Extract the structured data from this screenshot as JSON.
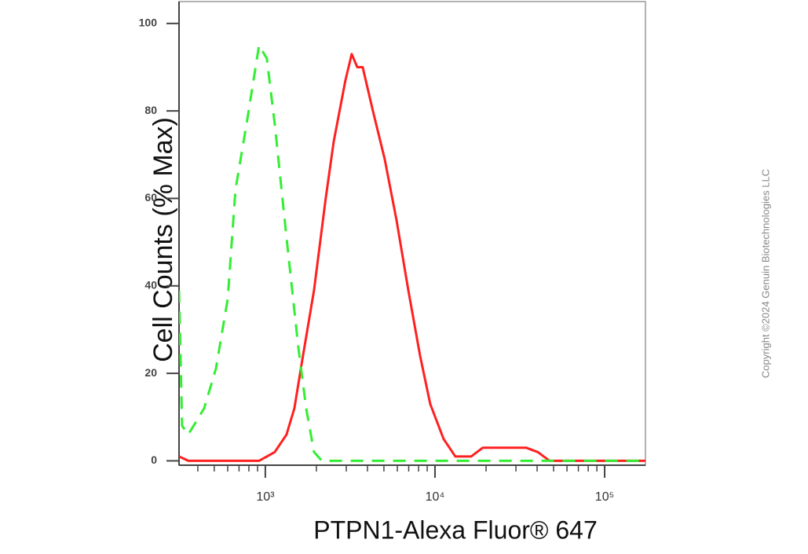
{
  "chart_data": {
    "type": "line",
    "log_x": true,
    "x_label": "PTPN1-Alexa Fluor® 647",
    "y_label": "Cell Counts (% Max)",
    "copyright": "Copyright ©2024 Genuin Biotechnologies LLC",
    "xlim": [
      310,
      174000
    ],
    "ylim": [
      -1,
      105
    ],
    "xticks": [
      {
        "value": 1000,
        "label": "10³"
      },
      {
        "value": 10000,
        "label": "10⁴"
      },
      {
        "value": 100000,
        "label": "10⁵"
      }
    ],
    "xminor_ticks": [
      400,
      500,
      600,
      700,
      800,
      900,
      2000,
      3000,
      4000,
      5000,
      6000,
      7000,
      8000,
      9000,
      20000,
      30000,
      40000,
      50000,
      60000,
      70000,
      80000,
      90000
    ],
    "yticks": [
      0,
      20,
      40,
      60,
      80,
      100
    ],
    "series": [
      {
        "color": "#ff2020",
        "dash": false,
        "x": [
          310,
          351,
          667,
          918,
          1136,
          1334,
          1483,
          1651,
          1937,
          2270,
          2529,
          2965,
          3228,
          3482,
          3750,
          4305,
          5054,
          5933,
          6966,
          8166,
          9376,
          11240,
          13190,
          16330,
          19150,
          22490,
          27810,
          34420,
          40360,
          47420,
          58700,
          174000
        ],
        "values": [
          1,
          0,
          0,
          0,
          2,
          6,
          12,
          23,
          39,
          60,
          73,
          87,
          93,
          90,
          90,
          80,
          69,
          55,
          39,
          24,
          13,
          5,
          1,
          1,
          3,
          3,
          3,
          3,
          2,
          0,
          0,
          0
        ]
      },
      {
        "color": "#33ee33",
        "dash": true,
        "x": [
          310,
          323,
          351,
          436,
          511,
          600,
          667,
          783,
          918,
          1021,
          1136,
          1334,
          1564,
          1741,
          1937,
          2154,
          174000
        ],
        "values": [
          39,
          8,
          6,
          12,
          21,
          37,
          62,
          78,
          95,
          92,
          77,
          51,
          26,
          12,
          2,
          0,
          0
        ]
      }
    ]
  }
}
